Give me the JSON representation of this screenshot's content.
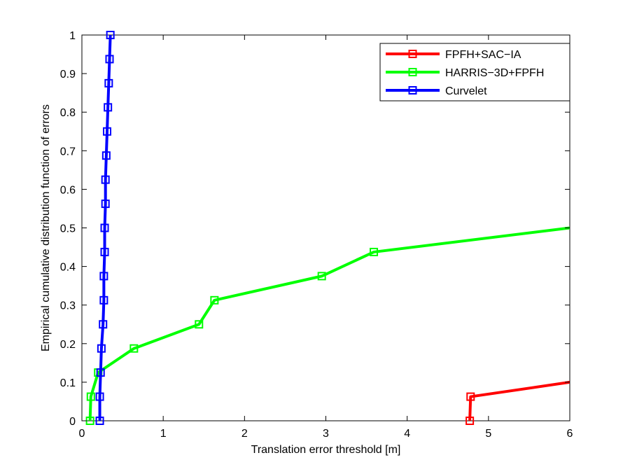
{
  "chart_data": {
    "type": "line",
    "title": "",
    "xlabel": "Translation error threshold [m]",
    "ylabel": "Empirical cumulative distribution function of errors",
    "xlim": [
      0,
      6
    ],
    "ylim": [
      0,
      1
    ],
    "xticks": [
      0,
      1,
      2,
      3,
      4,
      5,
      6
    ],
    "yticks": [
      0,
      0.1,
      0.2,
      0.3,
      0.4,
      0.5,
      0.6,
      0.7,
      0.8,
      0.9,
      1
    ],
    "grid": false,
    "legend_position": "top-right",
    "marker": "square",
    "series": [
      {
        "name": "FPFH+SAC−IA",
        "color": "#ff0000",
        "x": [
          4.77,
          4.78,
          6.0
        ],
        "y": [
          0.0,
          0.0625,
          0.1
        ]
      },
      {
        "name": "HARRIS−3D+FPFH",
        "color": "#00ff00",
        "x": [
          0.1,
          0.11,
          0.2,
          0.64,
          1.44,
          1.63,
          2.95,
          3.59,
          6.0
        ],
        "y": [
          0.0,
          0.0625,
          0.125,
          0.1875,
          0.25,
          0.3125,
          0.375,
          0.4375,
          0.5
        ]
      },
      {
        "name": "Curvelet",
        "color": "#0000ff",
        "x": [
          0.22,
          0.22,
          0.23,
          0.24,
          0.26,
          0.27,
          0.27,
          0.28,
          0.28,
          0.29,
          0.29,
          0.3,
          0.31,
          0.32,
          0.33,
          0.34,
          0.35
        ],
        "y": [
          0.0,
          0.0625,
          0.125,
          0.1875,
          0.25,
          0.3125,
          0.375,
          0.4375,
          0.5,
          0.5625,
          0.625,
          0.6875,
          0.75,
          0.8125,
          0.875,
          0.9375,
          1.0
        ]
      }
    ]
  }
}
